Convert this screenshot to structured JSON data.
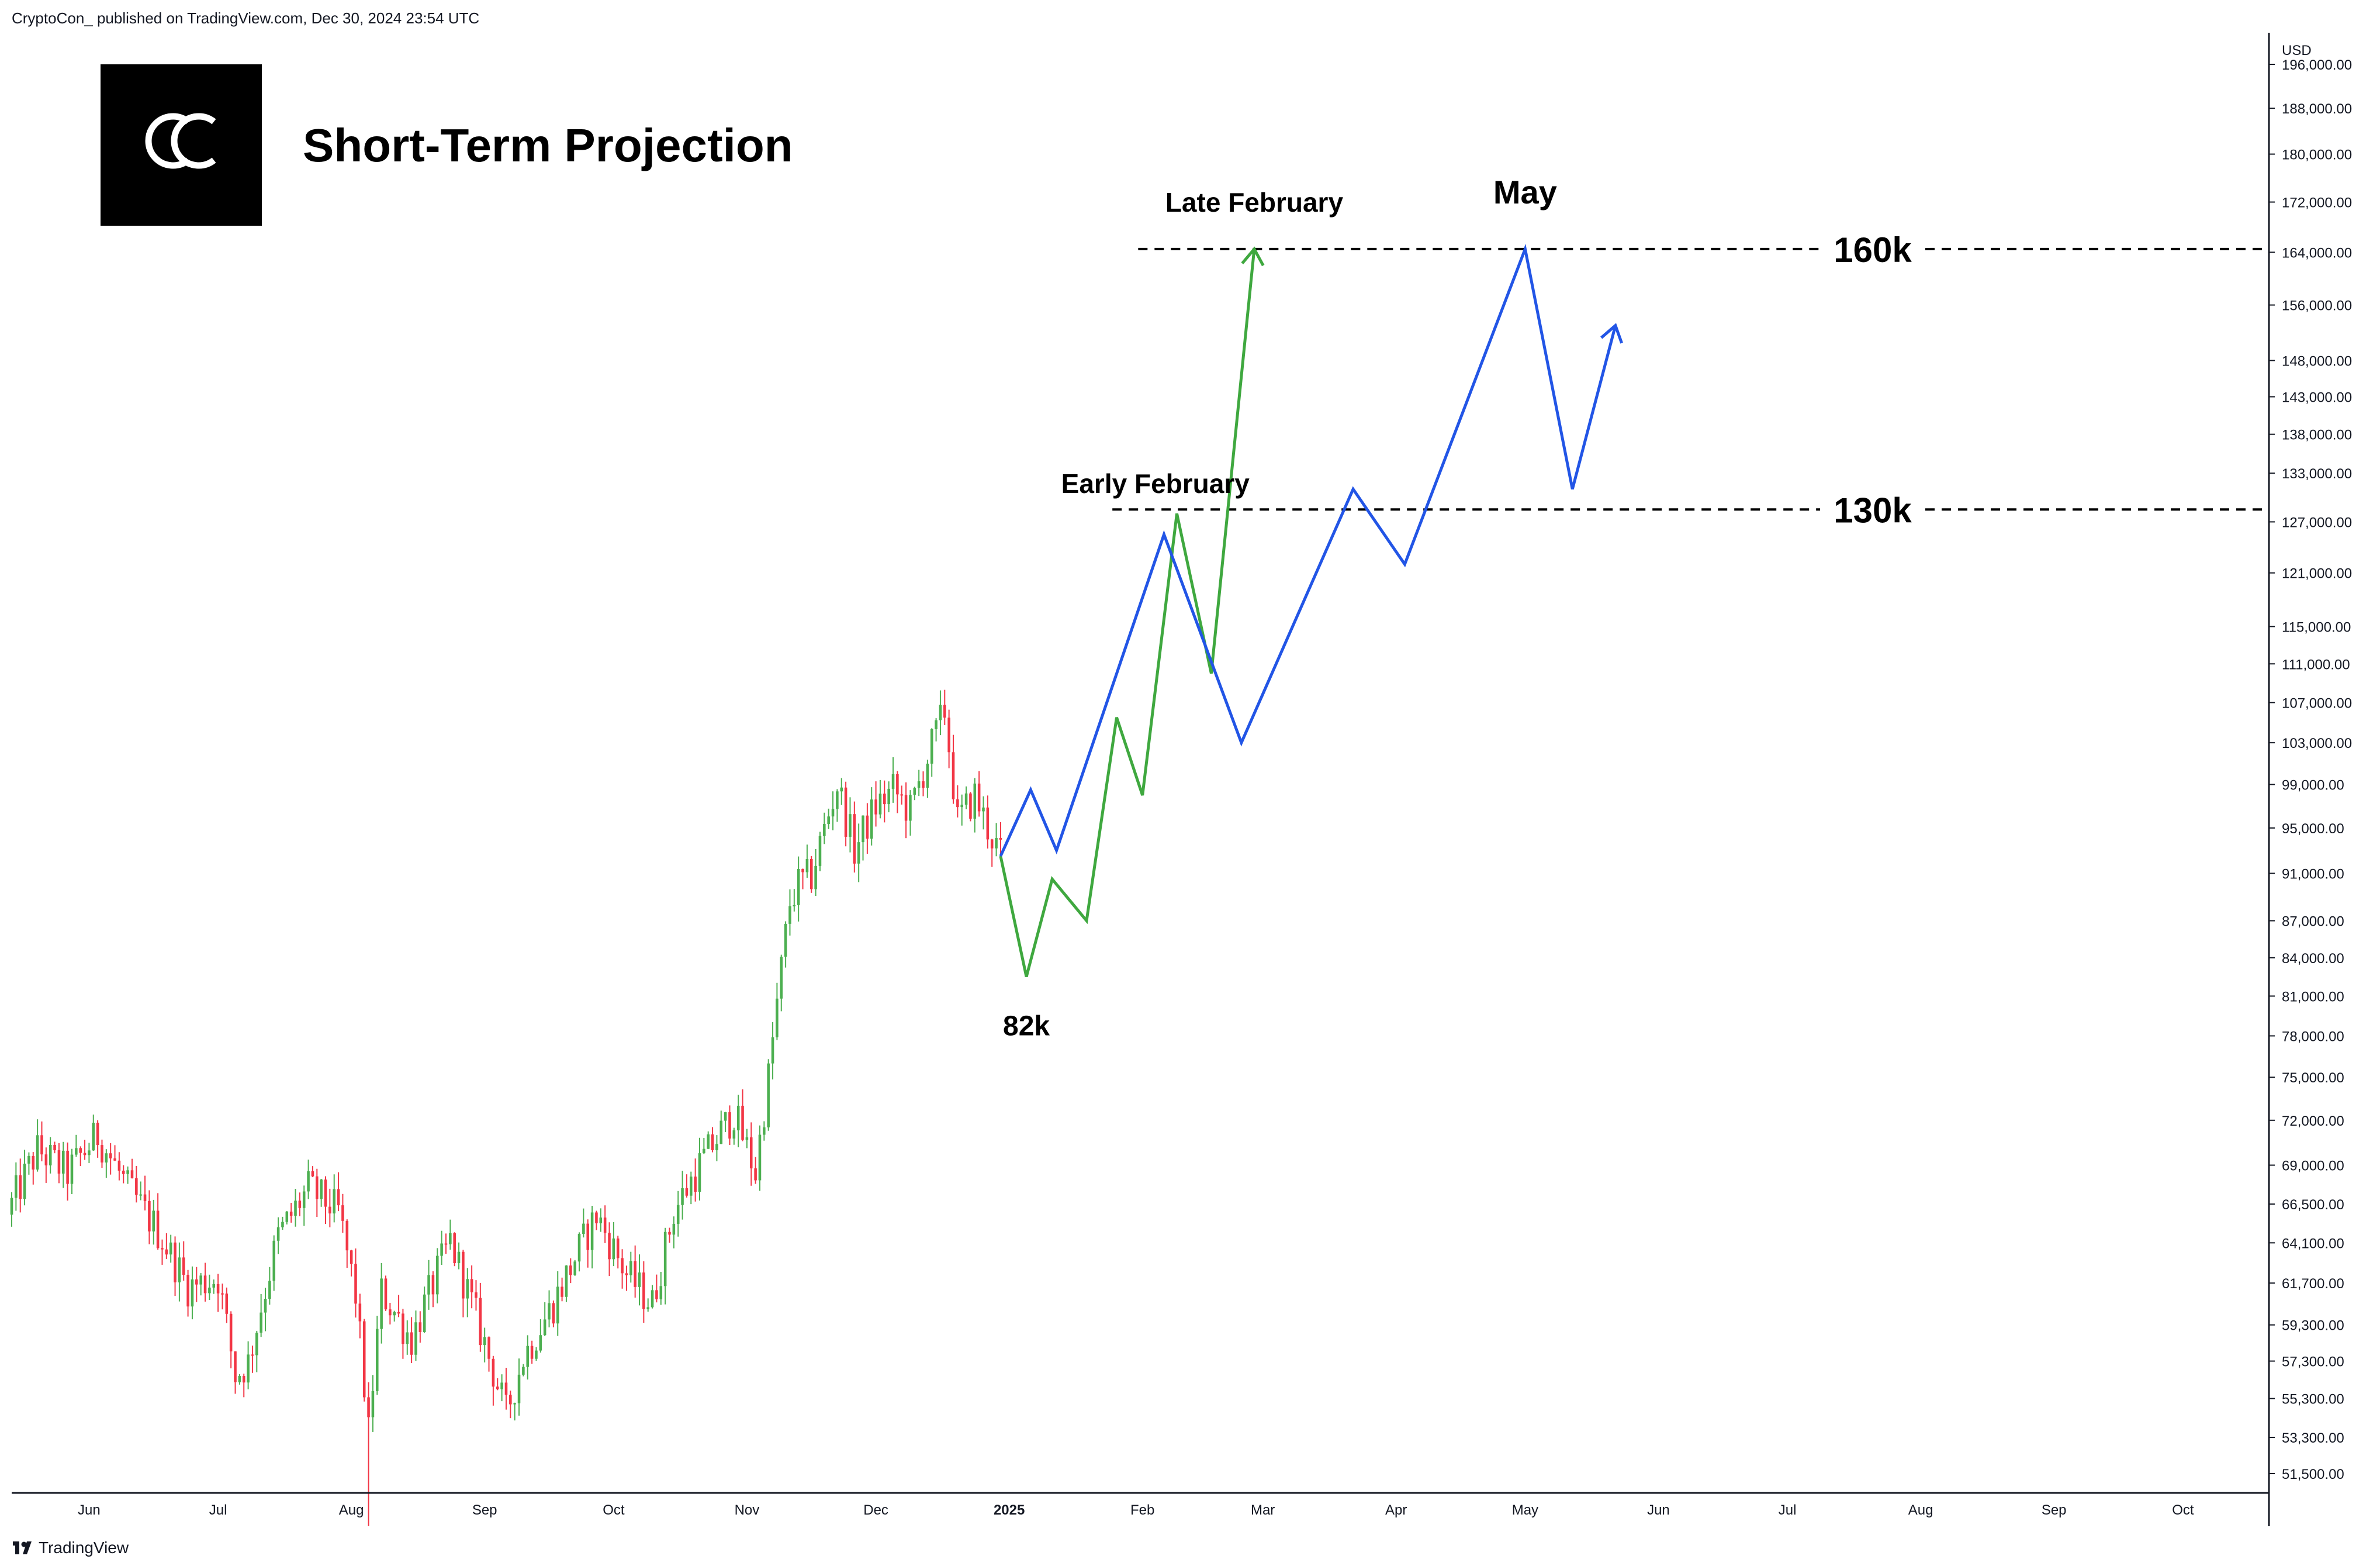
{
  "header": {
    "attribution": "CryptoCon_ published on TradingView.com, Dec 30, 2024 23:54 UTC"
  },
  "logo": {
    "mark": "CC",
    "bg_color": "#000000",
    "fg_color": "#ffffff"
  },
  "footer": {
    "brand": "TradingView",
    "icon": "tradingview-logo-icon"
  },
  "colors": {
    "up": "#089981",
    "up_candle": "#4caf50",
    "down": "#f23645",
    "green_path": "#3fa83f",
    "blue_path": "#2255e6",
    "level_line": "#000000",
    "axis_line": "#131722"
  },
  "chart_data": {
    "type": "candlestick",
    "title": "Short-Term Projection",
    "currency_label": "USD",
    "scale": "log",
    "ylim": [
      50000,
      205000
    ],
    "xlim": [
      "2024-05-14",
      "2025-10-21"
    ],
    "y_ticks": [
      {
        "value": 196000,
        "label": "196,000.00"
      },
      {
        "value": 188000,
        "label": "188,000.00"
      },
      {
        "value": 180000,
        "label": "180,000.00"
      },
      {
        "value": 172000,
        "label": "172,000.00"
      },
      {
        "value": 164000,
        "label": "164,000.00"
      },
      {
        "value": 156000,
        "label": "156,000.00"
      },
      {
        "value": 148000,
        "label": "148,000.00"
      },
      {
        "value": 143000,
        "label": "143,000.00"
      },
      {
        "value": 138000,
        "label": "138,000.00"
      },
      {
        "value": 133000,
        "label": "133,000.00"
      },
      {
        "value": 127000,
        "label": "127,000.00"
      },
      {
        "value": 121000,
        "label": "121,000.00"
      },
      {
        "value": 115000,
        "label": "115,000.00"
      },
      {
        "value": 111000,
        "label": "111,000.00"
      },
      {
        "value": 107000,
        "label": "107,000.00"
      },
      {
        "value": 103000,
        "label": "103,000.00"
      },
      {
        "value": 99000,
        "label": "99,000.00"
      },
      {
        "value": 95000,
        "label": "95,000.00"
      },
      {
        "value": 91000,
        "label": "91,000.00"
      },
      {
        "value": 87000,
        "label": "87,000.00"
      },
      {
        "value": 84000,
        "label": "84,000.00"
      },
      {
        "value": 81000,
        "label": "81,000.00"
      },
      {
        "value": 78000,
        "label": "78,000.00"
      },
      {
        "value": 75000,
        "label": "75,000.00"
      },
      {
        "value": 72000,
        "label": "72,000.00"
      },
      {
        "value": 69000,
        "label": "69,000.00"
      },
      {
        "value": 66500,
        "label": "66,500.00"
      },
      {
        "value": 64100,
        "label": "64,100.00"
      },
      {
        "value": 61700,
        "label": "61,700.00"
      },
      {
        "value": 59300,
        "label": "59,300.00"
      },
      {
        "value": 57300,
        "label": "57,300.00"
      },
      {
        "value": 55300,
        "label": "55,300.00"
      },
      {
        "value": 53300,
        "label": "53,300.00"
      },
      {
        "value": 51500,
        "label": "51,500.00"
      }
    ],
    "x_ticks": [
      {
        "date": "2024-06-01",
        "label": "Jun",
        "bold": false
      },
      {
        "date": "2024-07-01",
        "label": "Jul",
        "bold": false
      },
      {
        "date": "2024-08-01",
        "label": "Aug",
        "bold": false
      },
      {
        "date": "2024-09-01",
        "label": "Sep",
        "bold": false
      },
      {
        "date": "2024-10-01",
        "label": "Oct",
        "bold": false
      },
      {
        "date": "2024-11-01",
        "label": "Nov",
        "bold": false
      },
      {
        "date": "2024-12-01",
        "label": "Dec",
        "bold": false
      },
      {
        "date": "2025-01-01",
        "label": "2025",
        "bold": true
      },
      {
        "date": "2025-02-01",
        "label": "Feb",
        "bold": false
      },
      {
        "date": "2025-03-01",
        "label": "Mar",
        "bold": false
      },
      {
        "date": "2025-04-01",
        "label": "Apr",
        "bold": false
      },
      {
        "date": "2025-05-01",
        "label": "May",
        "bold": false
      },
      {
        "date": "2025-06-01",
        "label": "Jun",
        "bold": false
      },
      {
        "date": "2025-07-01",
        "label": "Jul",
        "bold": false
      },
      {
        "date": "2025-08-01",
        "label": "Aug",
        "bold": false
      },
      {
        "date": "2025-09-01",
        "label": "Sep",
        "bold": false
      },
      {
        "date": "2025-10-01",
        "label": "Oct",
        "bold": false
      }
    ],
    "close_anchors": [
      [
        "2024-05-14",
        66500
      ],
      [
        "2024-05-20",
        70000
      ],
      [
        "2024-05-27",
        68500
      ],
      [
        "2024-06-03",
        71000
      ],
      [
        "2024-06-10",
        67500
      ],
      [
        "2024-06-17",
        64800
      ],
      [
        "2024-06-24",
        61500
      ],
      [
        "2024-07-01",
        62000
      ],
      [
        "2024-07-05",
        56500
      ],
      [
        "2024-07-08",
        57200
      ],
      [
        "2024-07-15",
        64500
      ],
      [
        "2024-07-22",
        67500
      ],
      [
        "2024-07-29",
        66000
      ],
      [
        "2024-08-02",
        61000
      ],
      [
        "2024-08-05",
        53500
      ],
      [
        "2024-08-08",
        61200
      ],
      [
        "2024-08-15",
        58500
      ],
      [
        "2024-08-24",
        64200
      ],
      [
        "2024-08-31",
        59000
      ],
      [
        "2024-09-06",
        54500
      ],
      [
        "2024-09-10",
        57500
      ],
      [
        "2024-09-17",
        60500
      ],
      [
        "2024-09-27",
        65800
      ],
      [
        "2024-10-04",
        62200
      ],
      [
        "2024-10-10",
        60500
      ],
      [
        "2024-10-15",
        66000
      ],
      [
        "2024-10-21",
        69000
      ],
      [
        "2024-10-29",
        72500
      ],
      [
        "2024-11-03",
        68500
      ],
      [
        "2024-11-06",
        75000
      ],
      [
        "2024-11-11",
        88500
      ],
      [
        "2024-11-13",
        90000
      ],
      [
        "2024-11-16",
        90800
      ],
      [
        "2024-11-22",
        99000
      ],
      [
        "2024-11-26",
        93000
      ],
      [
        "2024-12-01",
        97000
      ],
      [
        "2024-12-05",
        98500
      ],
      [
        "2024-12-09",
        96500
      ],
      [
        "2024-12-13",
        101500
      ],
      [
        "2024-12-17",
        106200
      ],
      [
        "2024-12-20",
        95500
      ],
      [
        "2024-12-24",
        98000
      ],
      [
        "2024-12-27",
        95000
      ],
      [
        "2024-12-30",
        92500
      ]
    ],
    "notable_extremes": [
      {
        "date": "2024-08-05",
        "low": 49000
      },
      {
        "date": "2024-12-17",
        "high": 108300
      }
    ],
    "series": [
      {
        "color": "#3fa83f",
        "arrow": true,
        "points": [
          [
            "2024-12-30",
            92500
          ],
          [
            "2025-01-05",
            82500
          ],
          [
            "2025-01-11",
            90500
          ],
          [
            "2025-01-19",
            87000
          ],
          [
            "2025-01-26",
            105500
          ],
          [
            "2025-02-01",
            98000
          ],
          [
            "2025-02-09",
            128000
          ],
          [
            "2025-02-17",
            110000
          ],
          [
            "2025-02-27",
            164500
          ]
        ]
      },
      {
        "color": "#2255e6",
        "arrow": true,
        "points": [
          [
            "2024-12-30",
            92500
          ],
          [
            "2025-01-06",
            98500
          ],
          [
            "2025-01-12",
            93000
          ],
          [
            "2025-02-06",
            125500
          ],
          [
            "2025-02-24",
            103000
          ],
          [
            "2025-03-22",
            131000
          ],
          [
            "2025-04-03",
            122000
          ],
          [
            "2025-05-01",
            164500
          ],
          [
            "2025-05-12",
            131000
          ],
          [
            "2025-05-22",
            153000
          ]
        ]
      }
    ],
    "levels": [
      {
        "label": "130k",
        "value": 128500,
        "from": "2025-01-25"
      },
      {
        "label": "160k",
        "value": 164500,
        "from": "2025-01-31"
      }
    ],
    "annotations": [
      {
        "text": "Late February",
        "date": "2025-02-27",
        "value": 164500,
        "pos": "above"
      },
      {
        "text": "May",
        "date": "2025-05-01",
        "value": 164500,
        "pos": "above-high"
      },
      {
        "text": "Early February",
        "date": "2025-02-04",
        "value": 125000,
        "pos": "above-high"
      },
      {
        "text": "82k",
        "date": "2025-01-05",
        "value": 82500,
        "pos": "below"
      }
    ]
  }
}
